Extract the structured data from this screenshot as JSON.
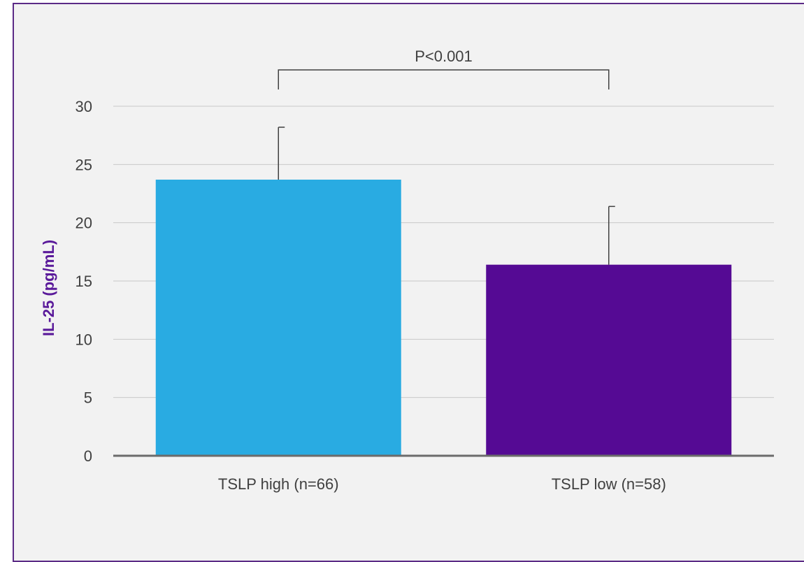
{
  "chart_data": {
    "type": "bar",
    "categories": [
      "TSLP high (n=66)",
      "TSLP low (n=58)"
    ],
    "values": [
      23.7,
      16.4
    ],
    "error_upper": [
      28.2,
      21.4
    ],
    "ylabel": "IL-25 (pg/mL)",
    "xlabel": "",
    "title": "",
    "ylim": [
      0,
      30
    ],
    "yticks": [
      0,
      5,
      10,
      15,
      20,
      25,
      30
    ],
    "grid": true,
    "legend": "none",
    "colors": [
      "#29abe2",
      "#550a94"
    ],
    "ylabel_color": "#5a1a9a",
    "annotation": {
      "text": "P<0.001",
      "between": [
        0,
        1
      ]
    }
  }
}
